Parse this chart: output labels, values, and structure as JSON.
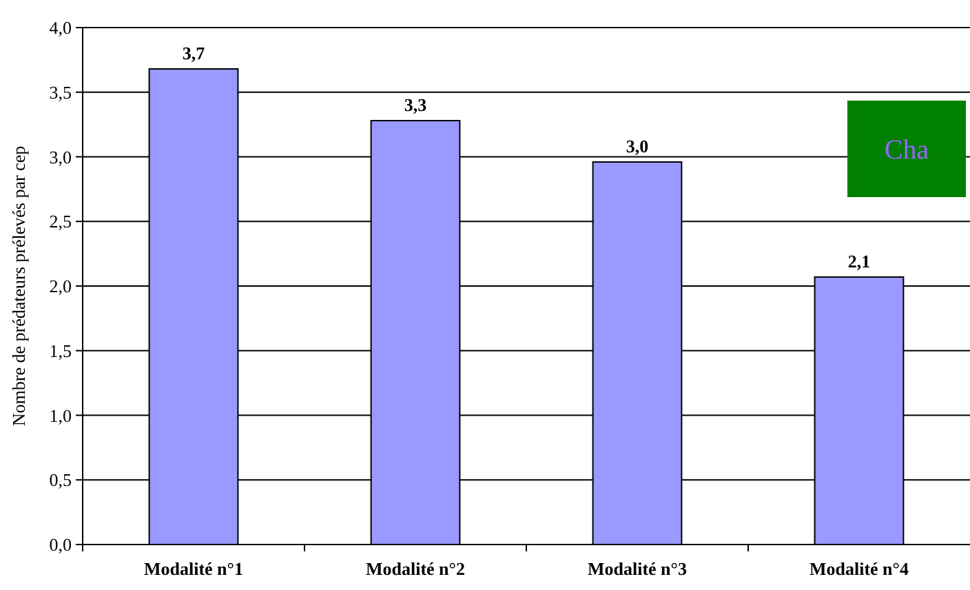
{
  "chart_data": {
    "type": "bar",
    "ylabel": "Nombre de prédateurs prélevés par cep",
    "categories": [
      "Modalité n°1",
      "Modalité n°2",
      "Modalité n°3",
      "Modalité n°4"
    ],
    "values": [
      3.68,
      3.28,
      2.96,
      2.07
    ],
    "value_labels": [
      "3,7",
      "3,3",
      "3,0",
      "2,1"
    ],
    "color": "#9999ff",
    "ylim": [
      0,
      4
    ],
    "yticks": [
      {
        "value": 0,
        "label": "0,0"
      },
      {
        "value": 0.5,
        "label": "0,5"
      },
      {
        "value": 1,
        "label": "1,0"
      },
      {
        "value": 1.5,
        "label": "1,5"
      },
      {
        "value": 2,
        "label": "2,0"
      },
      {
        "value": 2.5,
        "label": "2,5"
      },
      {
        "value": 3,
        "label": "3,0"
      },
      {
        "value": 3.5,
        "label": "3,5"
      },
      {
        "value": 4,
        "label": "4,0"
      }
    ],
    "grid": "y",
    "annotations": [
      "Cha"
    ]
  }
}
